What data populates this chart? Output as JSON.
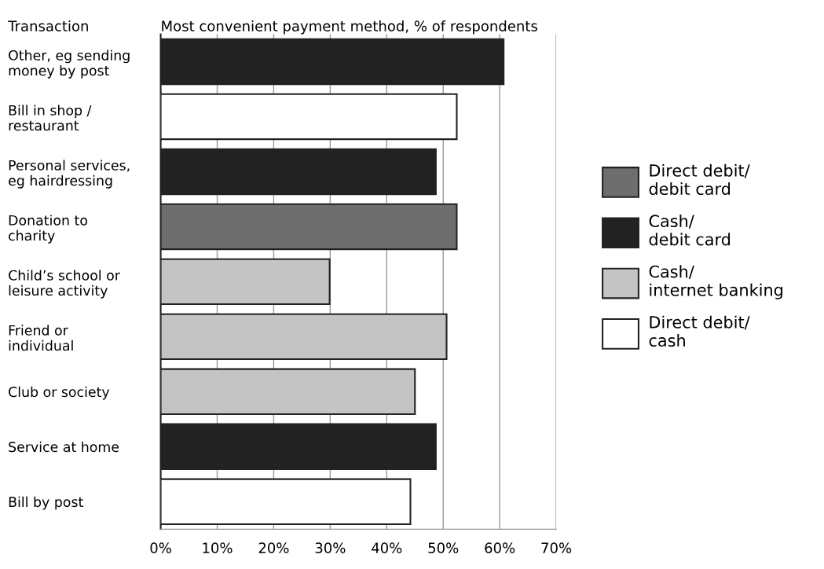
{
  "chart_data": {
    "type": "bar",
    "orientation": "horizontal",
    "ylabel": "Transaction",
    "xlabel": "Most convenient payment method, % of respondents",
    "categories": [
      "Other, eg sending\nmoney by post",
      "Bill in shop /\nrestaurant",
      "Personal services,\neg hairdressing",
      "Donation to\ncharity",
      "Child’s school or\nleisure activity",
      "Friend or\nindividual",
      "Club or society",
      "Service at home",
      "Bill by post"
    ],
    "series": [
      {
        "name": "Direct debit/\ndebit card",
        "color": "#6e6e6e",
        "values": [
          null,
          null,
          null,
          52.4,
          null,
          null,
          null,
          null,
          null
        ]
      },
      {
        "name": "Cash/\ndebit card",
        "color": "#222222",
        "values": [
          60.7,
          null,
          48.7,
          null,
          null,
          null,
          null,
          48.7,
          null
        ]
      },
      {
        "name": "Cash/\ninternet banking",
        "color": "#c4c4c4",
        "values": [
          null,
          null,
          null,
          null,
          29.9,
          50.6,
          45.0,
          null,
          null
        ]
      },
      {
        "name": "Direct debit/\ncash",
        "color": "#ffffff",
        "values": [
          null,
          52.4,
          null,
          null,
          null,
          null,
          null,
          null,
          44.2
        ]
      }
    ],
    "xlim": [
      0,
      70
    ],
    "xticks": [
      {
        "value": 0,
        "label": "0%"
      },
      {
        "value": 10,
        "label": "10%"
      },
      {
        "value": 20,
        "label": "20%"
      },
      {
        "value": 30,
        "label": "30%"
      },
      {
        "value": 40,
        "label": "40%"
      },
      {
        "value": 50,
        "label": "50%"
      },
      {
        "value": 60,
        "label": "60%"
      },
      {
        "value": 70,
        "label": "70%"
      }
    ],
    "grid": "x",
    "legend": "right"
  }
}
